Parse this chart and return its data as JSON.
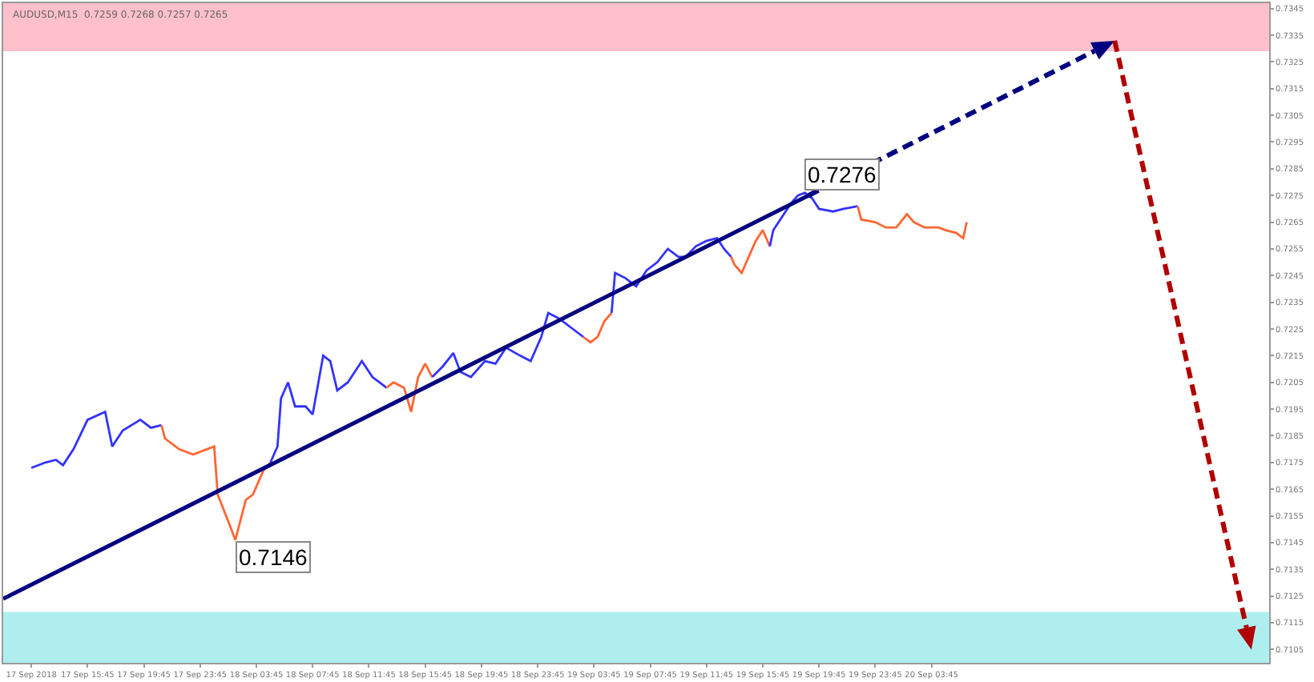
{
  "chart_data": {
    "type": "line",
    "annotations": [
      "AUDUSD,M15  0.7259 0.7268 0.7257 0.7265",
      {
        "text": "0.7276",
        "x": "2018-09-19T18:45",
        "y": 0.7276
      },
      {
        "text": "0.7146",
        "x": "2018-09-18T02:15",
        "y": 0.7146
      }
    ],
    "series": [
      {
        "color": "#3333ff",
        "x": [
          "2018-09-17T11:45",
          "2018-09-17T12:45",
          "2018-09-17T13:30",
          "2018-09-17T14:00",
          "2018-09-17T14:45",
          "2018-09-17T15:45",
          "2018-09-17T17:00",
          "2018-09-17T17:30",
          "2018-09-17T18:15",
          "2018-09-17T19:30",
          "2018-09-17T20:15",
          "2018-09-17T21:00"
        ],
        "values": [
          0.7173,
          0.7175,
          0.7176,
          0.7174,
          0.718,
          0.7191,
          0.7194,
          0.7181,
          0.7187,
          0.7191,
          0.7188,
          0.7189
        ]
      },
      {
        "color": "#ff6633",
        "x": [
          "2018-09-17T21:00",
          "2018-09-17T21:15",
          "2018-09-17T22:15",
          "2018-09-17T23:15",
          "2018-09-18T00:15",
          "2018-09-18T00:45",
          "2018-09-18T01:00",
          "2018-09-18T01:45",
          "2018-09-18T02:15",
          "2018-09-18T03:00",
          "2018-09-18T03:30",
          "2018-09-18T04:15",
          "2018-09-18T04:45"
        ],
        "values": [
          0.7189,
          0.7184,
          0.718,
          0.7178,
          0.718,
          0.7181,
          0.7163,
          0.7153,
          0.7146,
          0.7161,
          0.7163,
          0.7172,
          0.7175
        ]
      },
      {
        "color": "#3333ff",
        "x": [
          "2018-09-18T04:45",
          "2018-09-18T05:15",
          "2018-09-18T05:30",
          "2018-09-18T06:00",
          "2018-09-18T06:30",
          "2018-09-18T07:15",
          "2018-09-18T07:45",
          "2018-09-18T08:30",
          "2018-09-18T09:00",
          "2018-09-18T09:30",
          "2018-09-18T10:15",
          "2018-09-18T11:15",
          "2018-09-18T12:00",
          "2018-09-18T12:30",
          "2018-09-18T13:00"
        ],
        "values": [
          0.7175,
          0.7181,
          0.7199,
          0.7205,
          0.7196,
          0.7196,
          0.7193,
          0.7215,
          0.7213,
          0.7202,
          0.7205,
          0.7213,
          0.7207,
          0.7205,
          0.7203
        ]
      },
      {
        "color": "#ff6633",
        "x": [
          "2018-09-18T13:00",
          "2018-09-18T13:30",
          "2018-09-18T14:15",
          "2018-09-18T14:45",
          "2018-09-18T15:15",
          "2018-09-18T15:45",
          "2018-09-18T16:15"
        ],
        "values": [
          0.7203,
          0.7205,
          0.7203,
          0.7194,
          0.7207,
          0.7212,
          0.7207
        ]
      },
      {
        "color": "#3333ff",
        "x": [
          "2018-09-18T16:15",
          "2018-09-18T17:00",
          "2018-09-18T17:45",
          "2018-09-18T18:15",
          "2018-09-18T19:00",
          "2018-09-18T20:00",
          "2018-09-18T20:45",
          "2018-09-18T21:30",
          "2018-09-18T22:30",
          "2018-09-18T23:15",
          "2018-09-19T00:00",
          "2018-09-19T00:30",
          "2018-09-19T01:15",
          "2018-09-19T02:15",
          "2018-09-19T03:00"
        ],
        "values": [
          0.7207,
          0.7211,
          0.7216,
          0.7209,
          0.7207,
          0.7213,
          0.7212,
          0.7218,
          0.7215,
          0.7213,
          0.7222,
          0.7231,
          0.7229,
          0.7225,
          0.7222
        ]
      },
      {
        "color": "#ff6633",
        "x": [
          "2018-09-19T03:00",
          "2018-09-19T03:30",
          "2018-09-19T04:00",
          "2018-09-19T04:30",
          "2018-09-19T05:00"
        ],
        "values": [
          0.7222,
          0.722,
          0.7222,
          0.7228,
          0.7231
        ]
      },
      {
        "color": "#3333ff",
        "x": [
          "2018-09-19T05:00",
          "2018-09-19T05:15",
          "2018-09-19T06:00",
          "2018-09-19T06:45",
          "2018-09-19T07:30",
          "2018-09-19T08:15",
          "2018-09-19T09:00",
          "2018-09-19T09:45",
          "2018-09-19T10:15",
          "2018-09-19T11:00",
          "2018-09-19T11:45",
          "2018-09-19T12:30",
          "2018-09-19T13:00",
          "2018-09-19T13:30"
        ],
        "values": [
          0.7231,
          0.7246,
          0.7244,
          0.7241,
          0.7247,
          0.725,
          0.7255,
          0.7252,
          0.7252,
          0.7256,
          0.7258,
          0.7259,
          0.7255,
          0.7252
        ]
      },
      {
        "color": "#ff6633",
        "x": [
          "2018-09-19T13:30",
          "2018-09-19T13:45",
          "2018-09-19T14:15",
          "2018-09-19T14:45",
          "2018-09-19T15:15",
          "2018-09-19T15:45",
          "2018-09-19T16:15"
        ],
        "values": [
          0.7252,
          0.7249,
          0.7246,
          0.7252,
          0.7258,
          0.7262,
          0.7256
        ]
      },
      {
        "color": "#3333ff",
        "x": [
          "2018-09-19T16:15",
          "2018-09-19T16:30",
          "2018-09-19T17:15",
          "2018-09-19T17:45",
          "2018-09-19T18:15",
          "2018-09-19T18:45",
          "2018-09-19T19:15",
          "2018-09-19T19:45",
          "2018-09-19T20:45",
          "2018-09-19T21:30",
          "2018-09-19T22:30"
        ],
        "values": [
          0.7256,
          0.7262,
          0.7268,
          0.7272,
          0.7275,
          0.7276,
          0.7274,
          0.727,
          0.7269,
          0.727,
          0.7271
        ]
      },
      {
        "color": "#ff6633",
        "x": [
          "2018-09-19T22:30",
          "2018-09-19T22:45",
          "2018-09-19T23:45",
          "2018-09-20T00:30",
          "2018-09-20T01:15",
          "2018-09-20T02:00",
          "2018-09-20T02:30",
          "2018-09-20T03:15",
          "2018-09-20T04:15",
          "2018-09-20T04:45",
          "2018-09-20T05:30",
          "2018-09-20T06:00",
          "2018-09-20T06:15"
        ],
        "values": [
          0.7271,
          0.7266,
          0.7265,
          0.7263,
          0.7263,
          0.7268,
          0.7265,
          0.7263,
          0.7263,
          0.7262,
          0.7261,
          0.7259,
          0.7265
        ]
      },
      {
        "color": "#000080",
        "line_style": "solid",
        "x": [
          "2018-09-17T09:45",
          "2018-09-19T19:00"
        ],
        "values": [
          0.7124,
          0.7275
        ]
      }
    ],
    "bands": [
      {
        "axis": "y",
        "from": 0.7329,
        "to": 0.7347,
        "color": "#ffc0cb"
      },
      {
        "axis": "y",
        "from": 0.71,
        "to": 0.7119,
        "color": "#afeeee"
      }
    ],
    "marker": "none",
    "xlim": [
      "2018-09-17T09:45",
      "2018-09-21T03:45"
    ],
    "xticks": [
      {
        "value": "2018-09-17T11:45",
        "label": "17 Sep 2018"
      },
      {
        "value": "2018-09-17T15:45",
        "label": "17 Sep 15:45"
      },
      {
        "value": "2018-09-17T19:45",
        "label": "17 Sep 19:45"
      },
      {
        "value": "2018-09-17T23:45",
        "label": "17 Sep 23:45"
      },
      {
        "value": "2018-09-18T03:45",
        "label": "18 Sep 03:45"
      },
      {
        "value": "2018-09-18T07:45",
        "label": "18 Sep 07:45"
      },
      {
        "value": "2018-09-18T11:45",
        "label": "18 Sep 11:45"
      },
      {
        "value": "2018-09-18T15:45",
        "label": "18 Sep 15:45"
      },
      {
        "value": "2018-09-18T19:45",
        "label": "18 Sep 19:45"
      },
      {
        "value": "2018-09-18T23:45",
        "label": "18 Sep 23:45"
      },
      {
        "value": "2018-09-19T03:45",
        "label": "19 Sep 03:45"
      },
      {
        "value": "2018-09-19T07:45",
        "label": "19 Sep 07:45"
      },
      {
        "value": "2018-09-19T11:45",
        "label": "19 Sep 11:45"
      },
      {
        "value": "2018-09-19T15:45",
        "label": "19 Sep 15:45"
      },
      {
        "value": "2018-09-19T19:45",
        "label": "19 Sep 19:45"
      },
      {
        "value": "2018-09-19T23:45",
        "label": "19 Sep 23:45"
      },
      {
        "value": "2018-09-20T03:45",
        "label": "20 Sep 03:45"
      }
    ],
    "ylim": [
      0.71,
      0.7347
    ],
    "yticks": [
      0.7105,
      0.7115,
      0.7125,
      0.7135,
      0.7145,
      0.7155,
      0.7165,
      0.7175,
      0.7185,
      0.7195,
      0.7205,
      0.7215,
      0.7225,
      0.7235,
      0.7245,
      0.7255,
      0.7265,
      0.7275,
      0.7285,
      0.7295,
      0.7305,
      0.7315,
      0.7325,
      0.7335,
      0.7345
    ]
  }
}
